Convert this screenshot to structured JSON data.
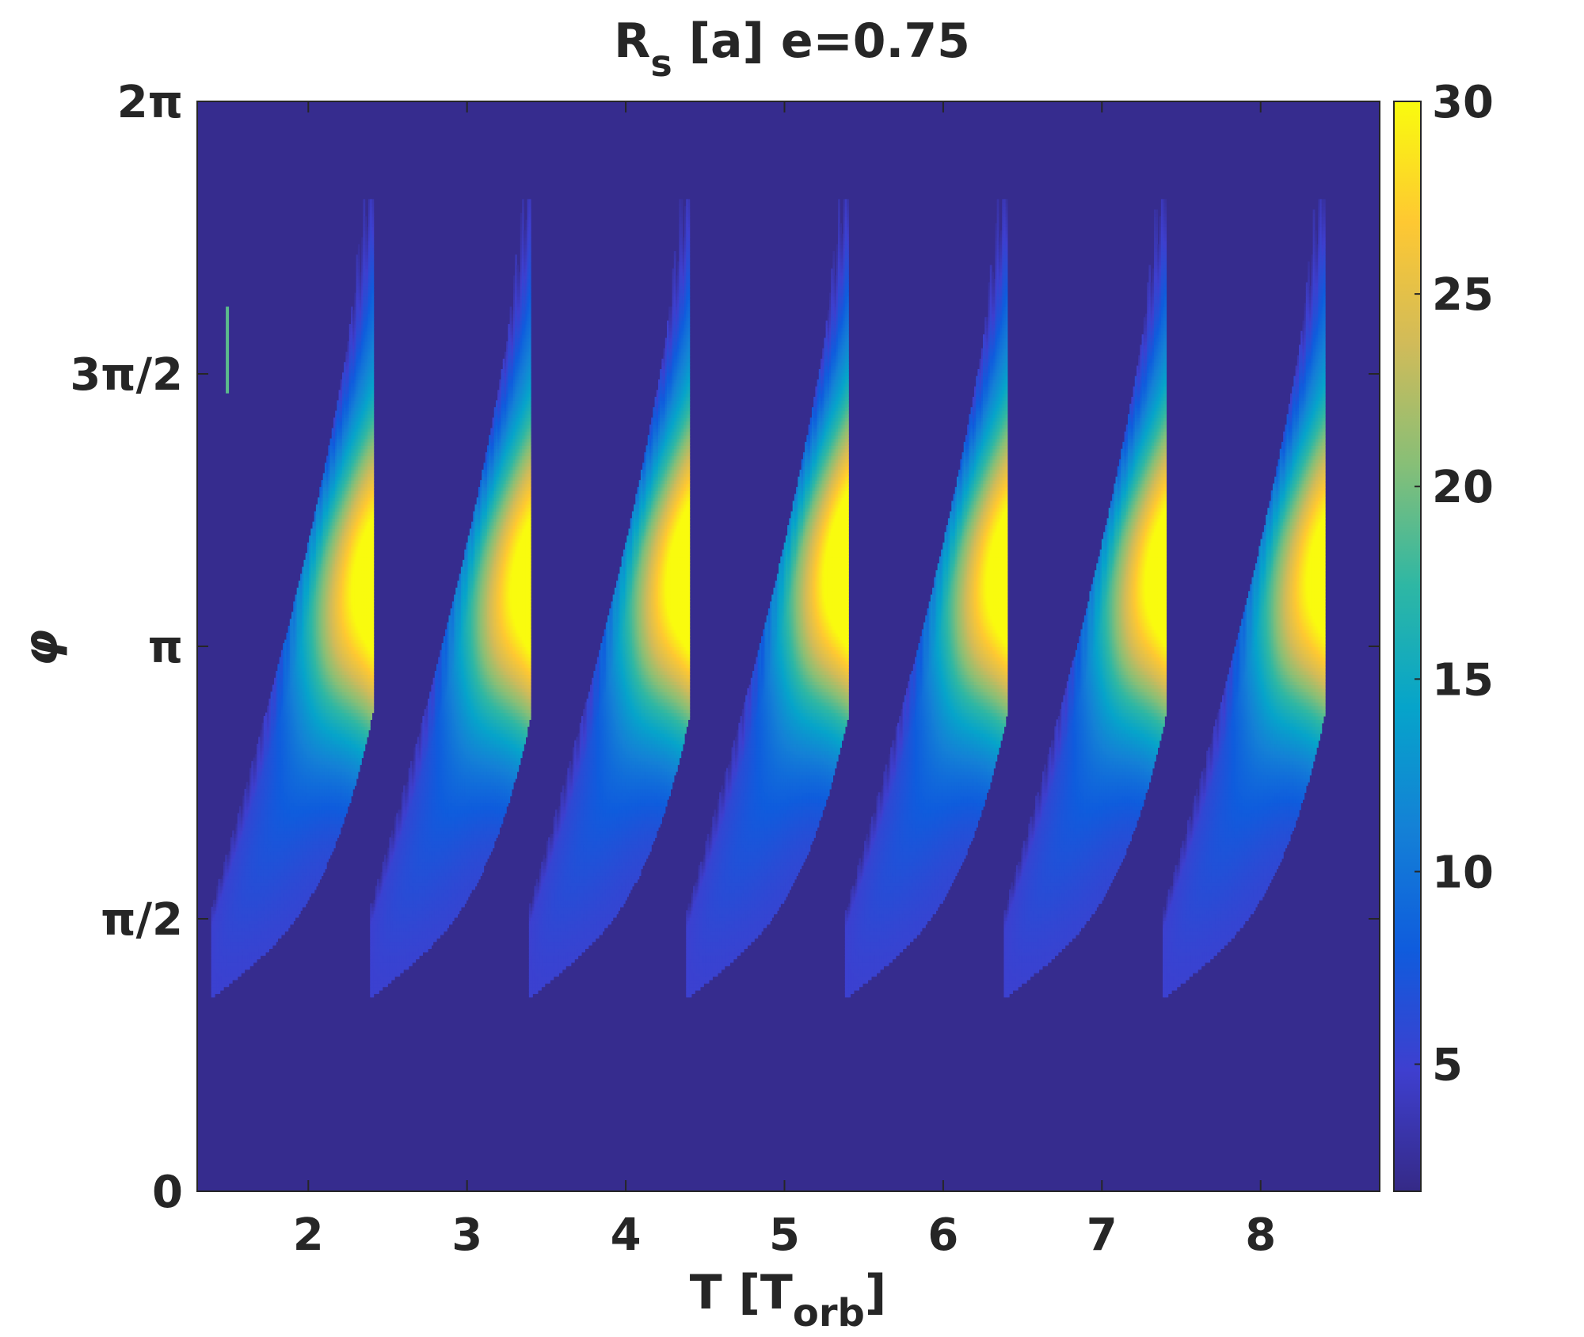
{
  "chart_data": {
    "type": "heatmap",
    "title": {
      "main": "R",
      "sub": "s",
      "rest": " [a] e=0.75"
    },
    "xlabel": {
      "main": "T [T",
      "sub": "orb",
      "rest": "]"
    },
    "ylabel": "φ",
    "xlim": [
      1.3,
      8.75
    ],
    "ylim": [
      0,
      6.2832
    ],
    "x_ticks": [
      {
        "value": 2,
        "label": "2"
      },
      {
        "value": 3,
        "label": "3"
      },
      {
        "value": 4,
        "label": "4"
      },
      {
        "value": 5,
        "label": "5"
      },
      {
        "value": 6,
        "label": "6"
      },
      {
        "value": 7,
        "label": "7"
      },
      {
        "value": 8,
        "label": "8"
      }
    ],
    "y_ticks": [
      {
        "value": 0,
        "label": "0"
      },
      {
        "value": 1.5708,
        "label": "π/2"
      },
      {
        "value": 3.1416,
        "label": "π"
      },
      {
        "value": 4.7124,
        "label": "3π/2"
      },
      {
        "value": 6.2832,
        "label": "2π"
      }
    ],
    "colorbar": {
      "range": [
        1.7,
        30
      ],
      "ticks": [
        {
          "value": 5,
          "label": "5"
        },
        {
          "value": 10,
          "label": "10"
        },
        {
          "value": 15,
          "label": "15"
        },
        {
          "value": 20,
          "label": "20"
        },
        {
          "value": 25,
          "label": "25"
        },
        {
          "value": 30,
          "label": "30"
        }
      ]
    },
    "colormap": "parula",
    "colormap_stops": [
      "#352a87",
      "#3e3fcf",
      "#0f5cdd",
      "#1481d6",
      "#06a4ca",
      "#2eb7a4",
      "#87bf77",
      "#d1bb59",
      "#fec832",
      "#f9fb0e"
    ],
    "background_value": 2,
    "lobes": [
      {
        "t_center": 2.38,
        "phi_peak": 3.4,
        "peak_value": 28
      },
      {
        "t_center": 3.38,
        "phi_peak": 3.4,
        "peak_value": 28
      },
      {
        "t_center": 4.38,
        "phi_peak": 3.45,
        "peak_value": 29
      },
      {
        "t_center": 5.38,
        "phi_peak": 3.5,
        "peak_value": 29.5
      },
      {
        "t_center": 6.38,
        "phi_peak": 3.45,
        "peak_value": 28
      },
      {
        "t_center": 7.38,
        "phi_peak": 3.45,
        "peak_value": 28
      },
      {
        "t_center": 8.38,
        "phi_peak": 3.45,
        "peak_value": 27
      }
    ],
    "artifact": {
      "t": 1.48,
      "phi_from": 4.6,
      "phi_to": 5.1,
      "value": 19
    }
  }
}
